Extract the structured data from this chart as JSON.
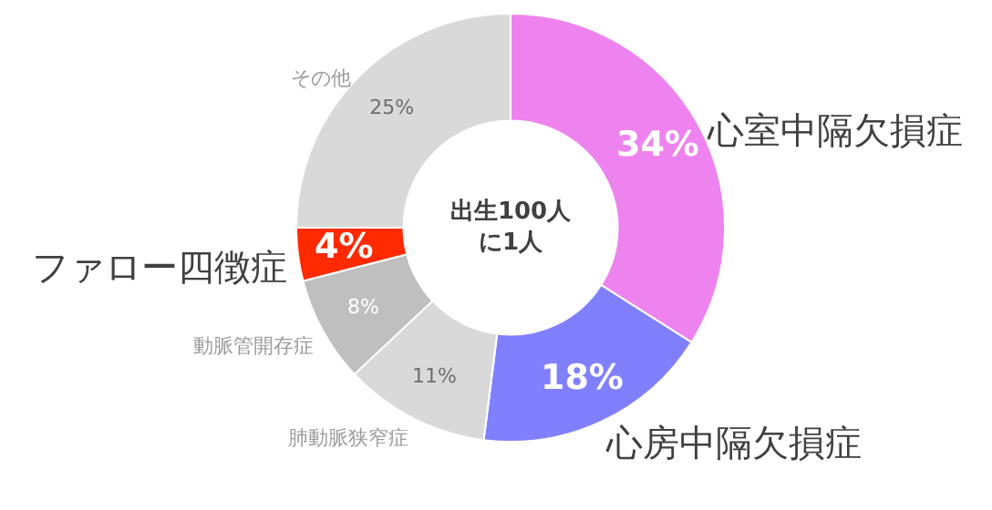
{
  "chart_data": {
    "type": "donut",
    "categories": [
      "心室中隔欠損症",
      "心房中隔欠損症",
      "肺動脈狭窄症",
      "動脈管開存症",
      "ファロー四徴症",
      "その他"
    ],
    "values": [
      34,
      18,
      11,
      8,
      4,
      25
    ],
    "value_labels": [
      "34%",
      "18%",
      "11%",
      "8%",
      "4%",
      "25%"
    ],
    "colors": [
      "#ee82ee",
      "#8080ff",
      "#d9d9d9",
      "#bfbfbf",
      "#ff2a00",
      "#d9d9d9"
    ],
    "annotations": [
      "出生100人",
      "に1人"
    ],
    "legend": false
  }
}
